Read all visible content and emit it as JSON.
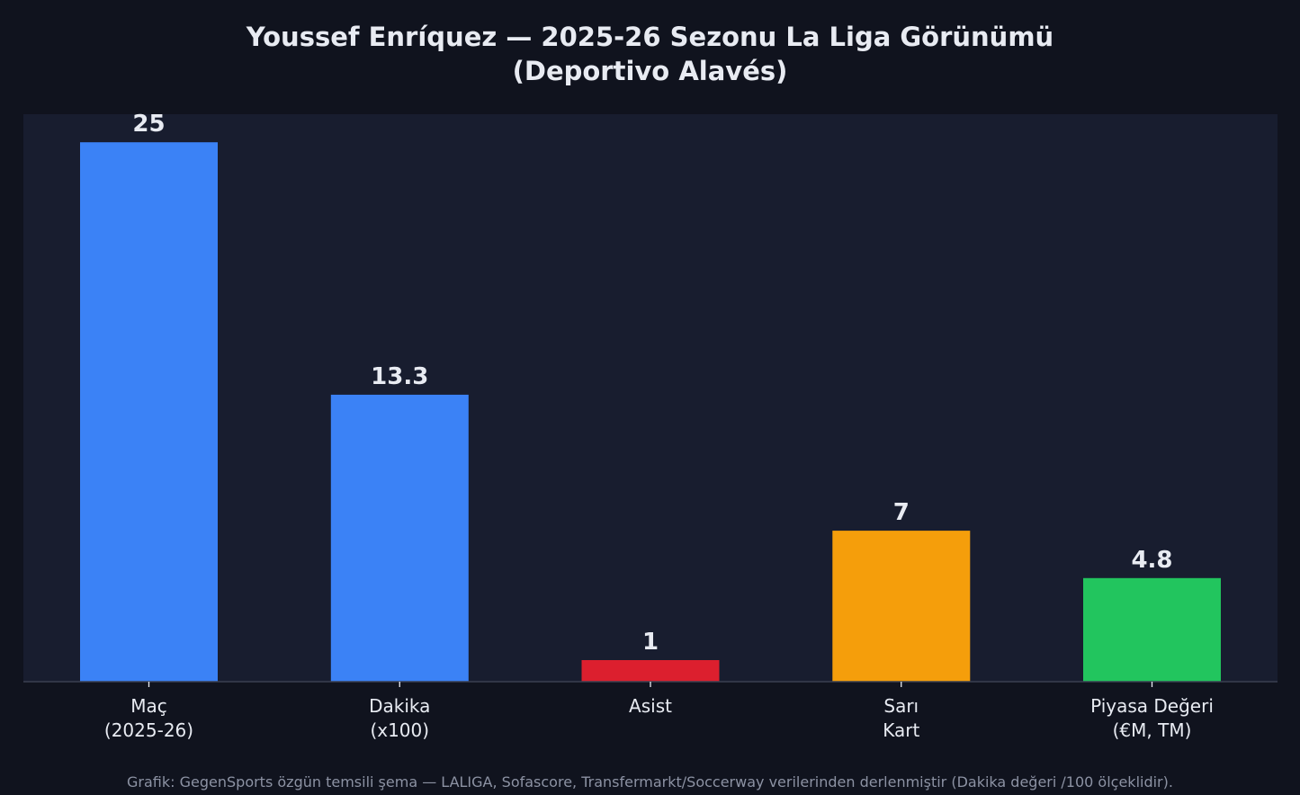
{
  "chart_data": {
    "type": "bar",
    "title": [
      "Youssef Enríquez — 2025-26 Sezonu La Liga Görünümü",
      "(Deportivo Alavés)"
    ],
    "categories": [
      [
        "Maç",
        "(2025-26)"
      ],
      [
        "Dakika",
        "(x100)"
      ],
      [
        "Asist"
      ],
      [
        "Sarı",
        "Kart"
      ],
      [
        "Piyasa Değeri",
        "(€M, TM)"
      ]
    ],
    "values": [
      25,
      13.3,
      1,
      7,
      4.8
    ],
    "value_labels": [
      "25",
      "13.3",
      "1",
      "7",
      "4.8"
    ],
    "bar_colors": [
      "#3b82f6",
      "#3b82f6",
      "#dc1f2e",
      "#f59e0b",
      "#22c55e"
    ],
    "ylim": [
      0,
      26.3
    ],
    "xlabel": "",
    "ylabel": "",
    "grid": false,
    "legend": "none",
    "footnote": "Grafik: GegenSports özgün temsili şema — LALIGA, Sofascore, Transfermarkt/Soccerway verilerinden derlenmiştir (Dakika değeri /100 ölçeklidir)."
  },
  "colors": {
    "page_background": "#10131e",
    "plot_background": "#181d2f",
    "text": "#e8ebf2",
    "footnote_text": "#8c92a3",
    "axis_line": "#3a4050"
  }
}
